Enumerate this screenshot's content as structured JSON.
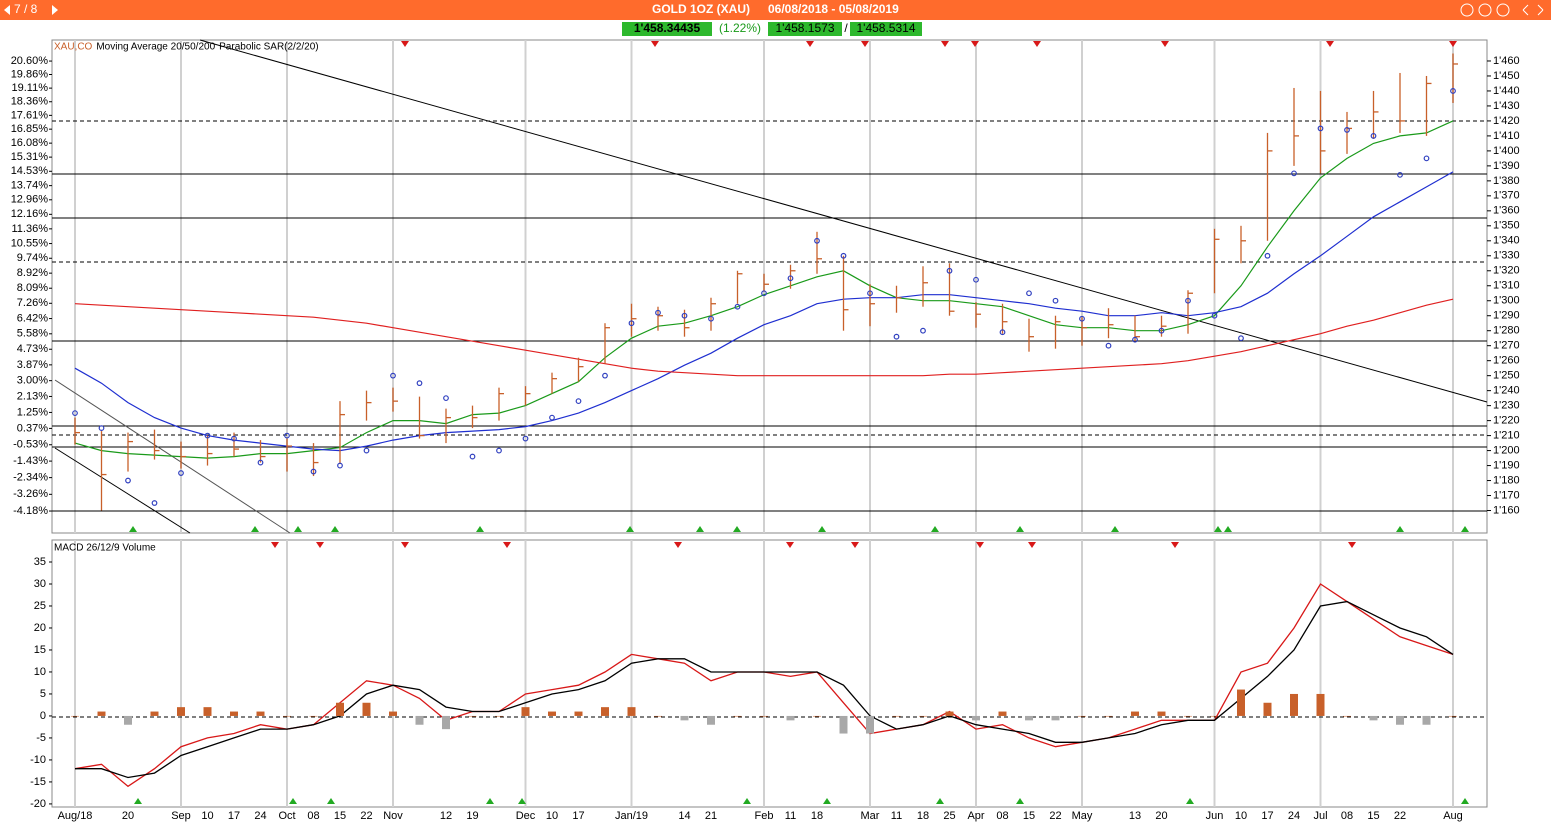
{
  "header": {
    "page": "7 / 8",
    "title": "GOLD 1OZ (XAU)",
    "range": "06/08/2018 - 05/08/2019",
    "price": "1'458.34435",
    "change": "(1.22%)",
    "bid": "1'458.1573",
    "separator": "/",
    "ask": "1'458.5314"
  },
  "chart_data": [
    {
      "type": "ohlc",
      "legend": [
        "XAU,CO",
        "Moving Average 20/50/200",
        "Parabolic SAR(2/2/20)"
      ],
      "ylim": [
        1145,
        1474
      ],
      "yticks": [
        {
          "value": 1160,
          "label": "1'160"
        },
        {
          "value": 1170,
          "label": "1'170"
        },
        {
          "value": 1180,
          "label": "1'180"
        },
        {
          "value": 1190,
          "label": "1'190"
        },
        {
          "value": 1200,
          "label": "1'200"
        },
        {
          "value": 1210,
          "label": "1'210"
        },
        {
          "value": 1220,
          "label": "1'220"
        },
        {
          "value": 1230,
          "label": "1'230"
        },
        {
          "value": 1240,
          "label": "1'240"
        },
        {
          "value": 1250,
          "label": "1'250"
        },
        {
          "value": 1260,
          "label": "1'260"
        },
        {
          "value": 1270,
          "label": "1'270"
        },
        {
          "value": 1280,
          "label": "1'280"
        },
        {
          "value": 1290,
          "label": "1'290"
        },
        {
          "value": 1300,
          "label": "1'300"
        },
        {
          "value": 1310,
          "label": "1'310"
        },
        {
          "value": 1320,
          "label": "1'320"
        },
        {
          "value": 1330,
          "label": "1'330"
        },
        {
          "value": 1340,
          "label": "1'340"
        },
        {
          "value": 1350,
          "label": "1'350"
        },
        {
          "value": 1360,
          "label": "1'360"
        },
        {
          "value": 1370,
          "label": "1'370"
        },
        {
          "value": 1380,
          "label": "1'380"
        },
        {
          "value": 1390,
          "label": "1'390"
        },
        {
          "value": 1400,
          "label": "1'400"
        },
        {
          "value": 1410,
          "label": "1'410"
        },
        {
          "value": 1420,
          "label": "1'420"
        },
        {
          "value": 1430,
          "label": "1'430"
        },
        {
          "value": 1440,
          "label": "1'440"
        },
        {
          "value": 1450,
          "label": "1'450"
        },
        {
          "value": 1460,
          "label": "1'460"
        }
      ],
      "y2lim": [
        -5.39,
        21.76
      ],
      "y2ticks": [
        {
          "value": 20.6,
          "label": "20.60%"
        },
        {
          "value": 19.86,
          "label": "19.86%"
        },
        {
          "value": 19.11,
          "label": "19.11%"
        },
        {
          "value": 18.36,
          "label": "18.36%"
        },
        {
          "value": 17.61,
          "label": "17.61%"
        },
        {
          "value": 16.85,
          "label": "16.85%"
        },
        {
          "value": 16.08,
          "label": "16.08%"
        },
        {
          "value": 15.31,
          "label": "15.31%"
        },
        {
          "value": 14.53,
          "label": "14.53%"
        },
        {
          "value": 13.74,
          "label": "13.74%"
        },
        {
          "value": 12.96,
          "label": "12.96%"
        },
        {
          "value": 12.16,
          "label": "12.16%"
        },
        {
          "value": 11.36,
          "label": "11.36%"
        },
        {
          "value": 10.55,
          "label": "10.55%"
        },
        {
          "value": 9.74,
          "label": "9.74%"
        },
        {
          "value": 8.92,
          "label": "8.92%"
        },
        {
          "value": 8.09,
          "label": "8.09%"
        },
        {
          "value": 7.26,
          "label": "7.26%"
        },
        {
          "value": 6.42,
          "label": "6.42%"
        },
        {
          "value": 5.58,
          "label": "5.58%"
        },
        {
          "value": 4.73,
          "label": "4.73%"
        },
        {
          "value": 3.87,
          "label": "3.87%"
        },
        {
          "value": 3.0,
          "label": "3.00%"
        },
        {
          "value": 2.13,
          "label": "2.13%"
        },
        {
          "value": 1.25,
          "label": "1.25%"
        },
        {
          "value": 0.37,
          "label": "0.37%"
        },
        {
          "value": -0.53,
          "label": "-0.53%"
        },
        {
          "value": -1.43,
          "label": "-1.43%"
        },
        {
          "value": -2.34,
          "label": "-2.34%"
        },
        {
          "value": -3.26,
          "label": "-3.26%"
        },
        {
          "value": -4.18,
          "label": "-4.18%"
        }
      ],
      "price": {
        "color": "#c8602a",
        "high": [
          1222,
          1213,
          1212,
          1214,
          1206,
          1210,
          1212,
          1207,
          1208,
          1205,
          1233,
          1240,
          1242,
          1236,
          1228,
          1230,
          1242,
          1243,
          1252,
          1262,
          1285,
          1298,
          1296,
          1294,
          1302,
          1320,
          1318,
          1324,
          1346,
          1330,
          1311,
          1310,
          1323,
          1325,
          1299,
          1298,
          1288,
          1290,
          1289,
          1295,
          1290,
          1290,
          1307,
          1348,
          1350,
          1412,
          1442,
          1440,
          1426,
          1440,
          1452,
          1450,
          1465
        ],
        "low": [
          1204,
          1160,
          1186,
          1194,
          1188,
          1190,
          1196,
          1192,
          1186,
          1183,
          1191,
          1220,
          1226,
          1208,
          1205,
          1215,
          1220,
          1230,
          1238,
          1246,
          1258,
          1276,
          1280,
          1276,
          1280,
          1298,
          1306,
          1308,
          1318,
          1280,
          1283,
          1292,
          1296,
          1290,
          1282,
          1278,
          1266,
          1268,
          1270,
          1275,
          1273,
          1276,
          1278,
          1305,
          1325,
          1340,
          1390,
          1385,
          1398,
          1408,
          1412,
          1410,
          1432
        ],
        "close": [
          1212,
          1184,
          1206,
          1200,
          1196,
          1198,
          1201,
          1196,
          1203,
          1192,
          1224,
          1232,
          1233,
          1210,
          1222,
          1222,
          1238,
          1238,
          1248,
          1256,
          1282,
          1288,
          1290,
          1282,
          1298,
          1318,
          1311,
          1320,
          1328,
          1294,
          1298,
          1302,
          1312,
          1293,
          1291,
          1286,
          1276,
          1286,
          1282,
          1284,
          1276,
          1283,
          1305,
          1341,
          1340,
          1400,
          1410,
          1400,
          1415,
          1426,
          1420,
          1445,
          1458
        ]
      },
      "moving_averages": [
        {
          "color": "#1a9a1a",
          "values": [
            1205,
            1200,
            1198,
            1197,
            1196,
            1195,
            1196,
            1198,
            1198,
            1200,
            1202,
            1212,
            1220,
            1220,
            1218,
            1224,
            1225,
            1230,
            1238,
            1246,
            1262,
            1275,
            1283,
            1285,
            1290,
            1296,
            1304,
            1310,
            1316,
            1320,
            1310,
            1302,
            1300,
            1300,
            1298,
            1296,
            1290,
            1284,
            1282,
            1282,
            1280,
            1280,
            1284,
            1290,
            1310,
            1336,
            1360,
            1382,
            1395,
            1405,
            1410,
            1412,
            1420
          ]
        },
        {
          "color": "#1f2fd0",
          "values": [
            1255,
            1245,
            1232,
            1222,
            1215,
            1210,
            1207,
            1205,
            1203,
            1201,
            1200,
            1203,
            1207,
            1210,
            1212,
            1213,
            1214,
            1216,
            1220,
            1225,
            1232,
            1240,
            1248,
            1257,
            1265,
            1275,
            1284,
            1290,
            1298,
            1301,
            1302,
            1302,
            1304,
            1304,
            1302,
            1300,
            1298,
            1295,
            1293,
            1290,
            1290,
            1292,
            1290,
            1292,
            1296,
            1305,
            1318,
            1330,
            1343,
            1356,
            1366,
            1376,
            1386
          ]
        },
        {
          "color": "#e02020",
          "values": [
            1298,
            1297,
            1296,
            1295,
            1294,
            1293,
            1292,
            1291,
            1290,
            1289,
            1287,
            1285,
            1282,
            1279,
            1276,
            1273,
            1270,
            1267,
            1264,
            1261,
            1258,
            1255,
            1253,
            1252,
            1251,
            1250,
            1250,
            1250,
            1250,
            1250,
            1250,
            1250,
            1250,
            1251,
            1251,
            1252,
            1253,
            1254,
            1255,
            1256,
            1257,
            1258,
            1260,
            1263,
            1266,
            1270,
            1274,
            1278,
            1283,
            1287,
            1292,
            1297,
            1301
          ]
        }
      ],
      "sar": {
        "color": "#3040c0",
        "values": [
          1225,
          1215,
          1180,
          1165,
          1185,
          1210,
          1208,
          1192,
          1210,
          1186,
          1190,
          1200,
          1250,
          1245,
          1235,
          1196,
          1200,
          1208,
          1222,
          1233,
          1250,
          1285,
          1292,
          1290,
          1288,
          1296,
          1305,
          1315,
          1340,
          1330,
          1305,
          1276,
          1280,
          1320,
          1314,
          1279,
          1305,
          1300,
          1288,
          1270,
          1274,
          1280,
          1300,
          1290,
          1275,
          1330,
          1385,
          1415,
          1414,
          1410,
          1384,
          1395,
          1440
        ]
      }
    },
    {
      "type": "macd",
      "label": "MACD 26/12/9 Volume",
      "categories": [
        "Aug/18",
        null,
        "20",
        null,
        "Sep",
        "10",
        "17",
        "24",
        "Oct",
        "08",
        "15",
        "22",
        "Nov",
        null,
        "12",
        "19",
        null,
        "Dec",
        "10",
        "17",
        null,
        "Jan/19",
        null,
        "14",
        "21",
        null,
        "Feb",
        "11",
        "18",
        null,
        "Mar",
        "11",
        "18",
        "25",
        "Apr",
        "08",
        "15",
        "22",
        "May",
        null,
        "13",
        "20",
        null,
        "Jun",
        "10",
        "17",
        "24",
        "Jul",
        "08",
        "15",
        "22",
        null,
        "Aug"
      ],
      "ylim": [
        -20.7,
        40
      ],
      "yticks": [
        -20,
        -15,
        -10,
        -5,
        0,
        5,
        10,
        15,
        20,
        25,
        30,
        35
      ],
      "series": [
        {
          "color": "#d81818",
          "values": [
            -12,
            -11,
            -16,
            -12,
            -7,
            -5,
            -4,
            -2,
            -3,
            -2,
            3,
            8,
            7,
            4,
            -1,
            1,
            1,
            5,
            6,
            7,
            10,
            14,
            13,
            12,
            8,
            10,
            10,
            9,
            10,
            3,
            -4,
            -3,
            -2,
            1,
            -3,
            -2,
            -5,
            -7,
            -6,
            -5,
            -3,
            -1,
            -1,
            -1,
            10,
            12,
            20,
            30,
            26,
            22,
            18,
            16,
            14
          ]
        },
        {
          "color": "#000000",
          "values": [
            -12,
            -12,
            -14,
            -13,
            -9,
            -7,
            -5,
            -3,
            -3,
            -2,
            0,
            5,
            7,
            6,
            2,
            1,
            1,
            3,
            5,
            6,
            8,
            12,
            13,
            13,
            10,
            10,
            10,
            10,
            10,
            7,
            0,
            -3,
            -2,
            0,
            -2,
            -3,
            -4,
            -6,
            -6,
            -5,
            -4,
            -2,
            -1,
            -1,
            4,
            9,
            15,
            25,
            26,
            23,
            20,
            18,
            14
          ]
        },
        {
          "bars": true,
          "color": "#c8602a",
          "negative_color": "#a8a8a8",
          "values": [
            0,
            1,
            -2,
            1,
            2,
            2,
            1,
            1,
            0,
            0,
            3,
            3,
            1,
            -2,
            -3,
            0,
            0,
            2,
            1,
            1,
            2,
            2,
            0,
            -1,
            -2,
            0,
            0,
            -1,
            0,
            -4,
            -4,
            0,
            0,
            1,
            -1,
            1,
            -1,
            -1,
            0,
            0,
            1,
            1,
            0,
            0,
            6,
            3,
            5,
            5,
            0,
            -1,
            -2,
            -2,
            0
          ]
        }
      ]
    }
  ]
}
